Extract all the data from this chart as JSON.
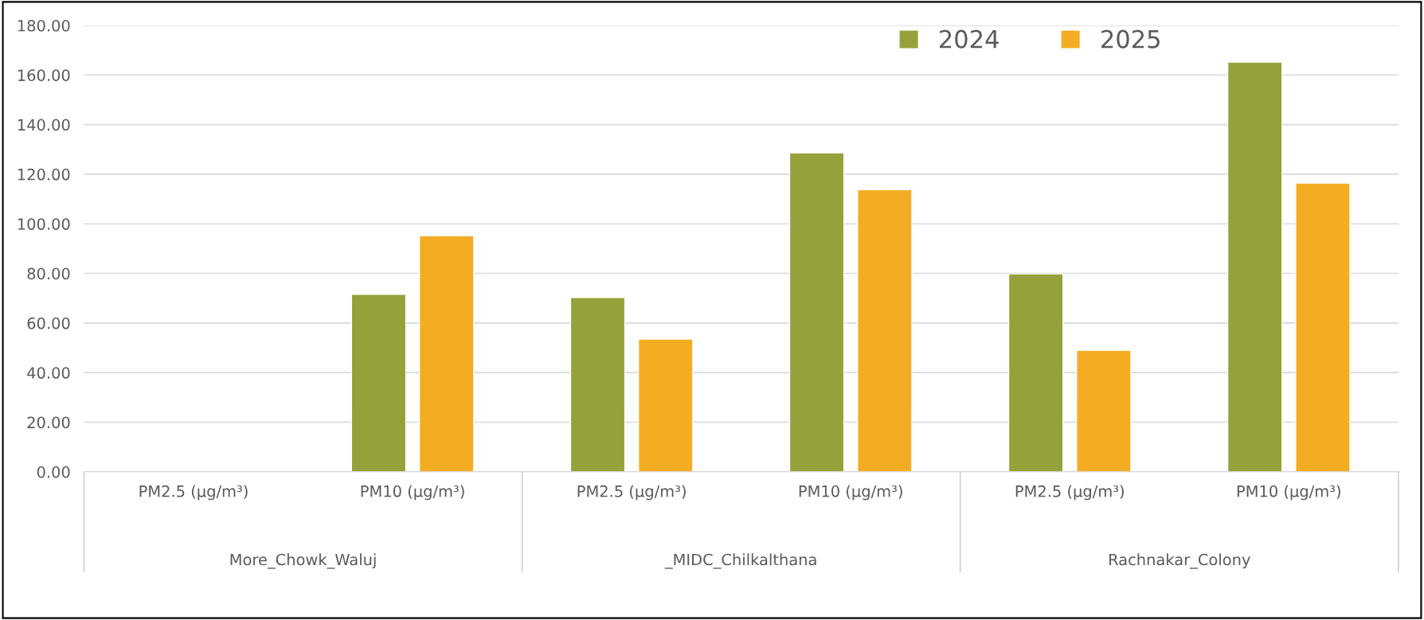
{
  "chart_data": {
    "type": "bar",
    "categories": [
      "PM2.5 (µg/m³)",
      "PM10 (µg/m³)",
      "PM2.5 (µg/m³)",
      "PM10 (µg/m³)",
      "PM2.5 (µg/m³)",
      "PM10 (µg/m³)"
    ],
    "annotations": [
      "More_Chowk_Waluj",
      "_MIDC_Chilkalthana",
      "Rachnakar_Colony"
    ],
    "series": [
      {
        "name": "2024",
        "color": "#96a13b",
        "values": [
          null,
          71.6,
          70.3,
          128.6,
          79.8,
          165.2
        ]
      },
      {
        "name": "2025",
        "color": "#f4ad23",
        "values": [
          null,
          95.2,
          53.5,
          113.8,
          49.0,
          116.4
        ]
      }
    ],
    "ylim": [
      0,
      180
    ],
    "yticks": [
      {
        "value": 0,
        "label": "0.00"
      },
      {
        "value": 20,
        "label": "20.00"
      },
      {
        "value": 40,
        "label": "40.00"
      },
      {
        "value": 60,
        "label": "60.00"
      },
      {
        "value": 80,
        "label": "80.00"
      },
      {
        "value": 100,
        "label": "100.00"
      },
      {
        "value": 120,
        "label": "120.00"
      },
      {
        "value": 140,
        "label": "140.00"
      },
      {
        "value": 160,
        "label": "160.00"
      },
      {
        "value": 180,
        "label": "180.00"
      }
    ],
    "grid": "y",
    "legend": "top"
  }
}
